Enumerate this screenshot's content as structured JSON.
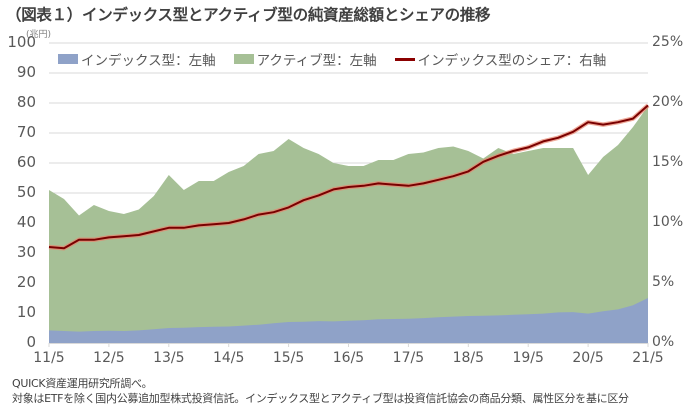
{
  "title": "（図表１）インデックス型とアクティブ型の純資産総額とシェアの推移",
  "unit_label": "(兆円)",
  "legend": [
    {
      "label": "インデックス型：左軸",
      "color": "#8fa2c8",
      "kind": "area"
    },
    {
      "label": "アクティブ型：左軸",
      "color": "#a6c096",
      "kind": "area"
    },
    {
      "label": "インデックス型のシェア：右軸",
      "color": "#8b0000",
      "kind": "line"
    }
  ],
  "left_axis_ticks": [
    "100",
    "90",
    "80",
    "70",
    "60",
    "50",
    "40",
    "30",
    "20",
    "10",
    "0"
  ],
  "right_axis_ticks": [
    "25%",
    "20%",
    "15%",
    "10%",
    "5%",
    "0%"
  ],
  "x_ticks": [
    "11/5",
    "12/5",
    "13/5",
    "14/5",
    "15/5",
    "16/5",
    "17/5",
    "18/5",
    "19/5",
    "20/5",
    "21/5"
  ],
  "notes": [
    "QUICK資産運用研究所調べ。",
    "対象はETFを除く国内公募追加型株式投資信託。インデックス型とアクティブ型は投資信託協会の商品分類、属性区分を基に区分"
  ],
  "chart_data": {
    "type": "area",
    "title": "（図表１）インデックス型とアクティブ型の純資産総額とシェアの推移",
    "xlabel": "",
    "ylabel": "兆円",
    "ylabel_right": "%",
    "ylim": [
      0,
      100
    ],
    "ylim_right": [
      0,
      25
    ],
    "grid": true,
    "legend_position": "top",
    "x": [
      "11/5",
      "11/8",
      "11/11",
      "12/2",
      "12/5",
      "12/8",
      "12/11",
      "13/2",
      "13/5",
      "13/8",
      "13/11",
      "14/2",
      "14/5",
      "14/8",
      "14/11",
      "15/2",
      "15/5",
      "15/8",
      "15/11",
      "16/2",
      "16/5",
      "16/8",
      "16/11",
      "17/2",
      "17/5",
      "17/8",
      "17/11",
      "18/2",
      "18/5",
      "18/8",
      "18/11",
      "19/2",
      "19/5",
      "19/8",
      "19/11",
      "20/2",
      "20/5",
      "20/8",
      "20/11",
      "21/2",
      "21/5"
    ],
    "series": [
      {
        "name": "インデックス型：左軸",
        "axis": "left",
        "stack": true,
        "color": "#8fa2c8",
        "values": [
          4.2,
          4.0,
          3.8,
          4.0,
          4.1,
          4.0,
          4.2,
          4.6,
          5.0,
          5.1,
          5.3,
          5.4,
          5.5,
          5.8,
          6.1,
          6.6,
          7.0,
          7.1,
          7.3,
          7.2,
          7.4,
          7.6,
          7.9,
          8.0,
          8.1,
          8.3,
          8.6,
          8.8,
          9.0,
          9.1,
          9.2,
          9.4,
          9.6,
          9.8,
          10.2,
          10.3,
          9.8,
          10.6,
          11.2,
          12.6,
          15.0
        ]
      },
      {
        "name": "アクティブ型：左軸",
        "axis": "left",
        "stack": true,
        "color": "#a6c096",
        "values": [
          46.8,
          44.0,
          38.7,
          42.0,
          39.9,
          39.0,
          40.3,
          44.4,
          51.0,
          45.9,
          48.7,
          48.6,
          51.5,
          53.2,
          56.9,
          57.4,
          61.0,
          57.9,
          55.7,
          52.8,
          51.6,
          51.4,
          53.1,
          53.0,
          54.9,
          55.2,
          56.4,
          56.7,
          55.0,
          52.4,
          55.8,
          53.6,
          54.4,
          55.2,
          54.8,
          54.7,
          46.2,
          51.4,
          54.8,
          59.4,
          64.0
        ]
      },
      {
        "name": "インデックス型のシェア：右軸",
        "axis": "right",
        "type": "line",
        "color": "#8b0000",
        "values": [
          8.0,
          7.9,
          8.6,
          8.6,
          8.8,
          8.9,
          9.0,
          9.3,
          9.6,
          9.6,
          9.8,
          9.9,
          10.0,
          10.3,
          10.7,
          10.9,
          11.3,
          11.9,
          12.3,
          12.8,
          13.0,
          13.1,
          13.3,
          13.2,
          13.1,
          13.3,
          13.6,
          13.9,
          14.3,
          15.1,
          15.6,
          16.0,
          16.3,
          16.8,
          17.1,
          17.6,
          18.4,
          18.2,
          18.4,
          18.7,
          19.8
        ]
      }
    ]
  }
}
